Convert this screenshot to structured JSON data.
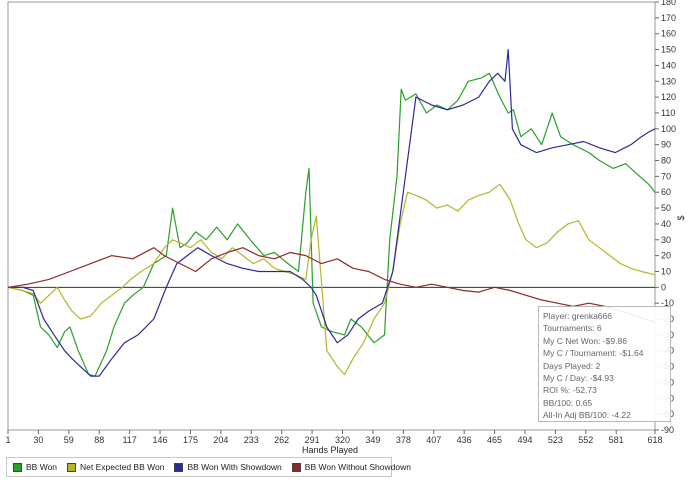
{
  "chart_data": {
    "type": "line",
    "title": "",
    "xlabel": "Hands Played",
    "ylabel": "$",
    "xlim": [
      1,
      618
    ],
    "ylim": [
      -90,
      180
    ],
    "x_ticks": [
      1,
      30,
      59,
      88,
      117,
      146,
      175,
      204,
      233,
      262,
      291,
      320,
      349,
      378,
      407,
      436,
      465,
      494,
      523,
      552,
      581,
      618
    ],
    "y_ticks": [
      -90,
      -80,
      -70,
      -60,
      -50,
      -40,
      -30,
      -20,
      -10,
      0,
      10,
      20,
      30,
      40,
      50,
      60,
      70,
      80,
      90,
      100,
      110,
      120,
      130,
      140,
      150,
      160,
      170,
      180
    ],
    "series": [
      {
        "name": "BB Won",
        "color": "#2aa02a",
        "x": [
          1,
          15,
          25,
          32,
          40,
          48,
          55,
          60,
          68,
          78,
          84,
          95,
          102,
          112,
          120,
          130,
          140,
          152,
          158,
          165,
          172,
          180,
          190,
          200,
          210,
          220,
          232,
          245,
          255,
          268,
          278,
          285,
          288,
          292,
          300,
          310,
          322,
          328,
          338,
          350,
          360,
          365,
          372,
          376,
          380,
          390,
          400,
          410,
          420,
          430,
          440,
          452,
          460,
          470,
          478,
          483,
          490,
          500,
          510,
          520,
          528,
          540,
          555,
          565,
          578,
          590,
          600,
          612,
          618
        ],
        "y": [
          0,
          -2,
          -5,
          -25,
          -30,
          -38,
          -28,
          -25,
          -40,
          -55,
          -56,
          -40,
          -25,
          -10,
          -5,
          0,
          15,
          20,
          50,
          25,
          28,
          35,
          30,
          38,
          30,
          40,
          30,
          20,
          22,
          15,
          10,
          60,
          75,
          -10,
          -25,
          -28,
          -30,
          -20,
          -25,
          -35,
          -30,
          30,
          70,
          125,
          118,
          122,
          110,
          115,
          112,
          118,
          130,
          132,
          135,
          120,
          110,
          112,
          95,
          100,
          90,
          110,
          95,
          90,
          85,
          80,
          75,
          78,
          72,
          65,
          60
        ]
      },
      {
        "name": "Net Expected BB Won",
        "color": "#b5b52a",
        "x": [
          1,
          15,
          25,
          32,
          40,
          48,
          55,
          62,
          70,
          80,
          90,
          100,
          110,
          118,
          128,
          140,
          150,
          158,
          165,
          175,
          185,
          195,
          205,
          215,
          225,
          235,
          245,
          255,
          265,
          275,
          285,
          290,
          295,
          305,
          315,
          322,
          330,
          340,
          350,
          360,
          368,
          375,
          382,
          390,
          400,
          410,
          420,
          430,
          440,
          450,
          460,
          470,
          480,
          488,
          495,
          505,
          515,
          525,
          535,
          545,
          555,
          565,
          575,
          585,
          595,
          605,
          618
        ],
        "y": [
          0,
          -2,
          -4,
          -10,
          -5,
          0,
          -8,
          -15,
          -20,
          -18,
          -10,
          -5,
          0,
          5,
          10,
          15,
          25,
          30,
          28,
          25,
          30,
          22,
          18,
          25,
          20,
          15,
          18,
          12,
          10,
          8,
          5,
          30,
          45,
          -40,
          -50,
          -55,
          -45,
          -35,
          -20,
          -10,
          10,
          40,
          60,
          58,
          55,
          50,
          52,
          48,
          55,
          58,
          60,
          65,
          55,
          40,
          30,
          25,
          28,
          35,
          40,
          42,
          30,
          25,
          20,
          15,
          12,
          10,
          8
        ]
      },
      {
        "name": "BB Won With Showdown",
        "color": "#2a2a9a",
        "x": [
          1,
          15,
          25,
          35,
          45,
          55,
          62,
          70,
          80,
          88,
          100,
          112,
          125,
          140,
          152,
          162,
          172,
          182,
          195,
          210,
          225,
          240,
          255,
          270,
          282,
          290,
          295,
          305,
          315,
          325,
          335,
          345,
          358,
          368,
          378,
          390,
          405,
          420,
          435,
          450,
          460,
          468,
          475,
          478,
          482,
          490,
          505,
          520,
          535,
          550,
          565,
          580,
          595,
          605,
          612,
          618
        ],
        "y": [
          0,
          0,
          -2,
          -20,
          -30,
          -40,
          -45,
          -50,
          -56,
          -56,
          -45,
          -35,
          -30,
          -20,
          0,
          15,
          20,
          25,
          20,
          15,
          12,
          10,
          10,
          10,
          5,
          0,
          -5,
          -25,
          -35,
          -30,
          -20,
          -15,
          -10,
          10,
          60,
          120,
          115,
          112,
          115,
          120,
          130,
          135,
          130,
          150,
          100,
          90,
          85,
          88,
          90,
          92,
          88,
          85,
          90,
          95,
          98,
          100
        ]
      },
      {
        "name": "BB Won Without Showdown",
        "color": "#8c2a2a",
        "x": [
          1,
          20,
          40,
          60,
          80,
          100,
          120,
          140,
          150,
          165,
          180,
          195,
          210,
          225,
          240,
          255,
          270,
          285,
          300,
          315,
          330,
          345,
          360,
          375,
          390,
          405,
          420,
          435,
          450,
          465,
          480,
          495,
          510,
          525,
          540,
          555,
          570,
          585,
          600,
          618
        ],
        "y": [
          0,
          2,
          5,
          10,
          15,
          20,
          18,
          25,
          20,
          15,
          10,
          18,
          22,
          25,
          20,
          18,
          22,
          20,
          15,
          18,
          12,
          10,
          5,
          2,
          0,
          2,
          0,
          -2,
          -3,
          0,
          -2,
          -5,
          -8,
          -10,
          -12,
          -10,
          -12,
          -15,
          -18,
          -22
        ]
      }
    ],
    "legend_position": "bottom-left"
  },
  "stats": {
    "player": "Player: grenka666",
    "tournaments": "Tournaments: 6",
    "net_won": "My C Net Won: -$9.86",
    "per_tournament": "My C / Tournament: -$1.64",
    "days_played": "Days Played: 2",
    "per_day": "My C / Day: -$4.93",
    "roi": "ROI %: -52.73",
    "bb_100": "BB/100: 0.65",
    "allin_bb_100": "All-In Adj BB/100: -4.22"
  },
  "colors": {
    "zero_line": "#333333",
    "frame": "#9a9a9a"
  }
}
